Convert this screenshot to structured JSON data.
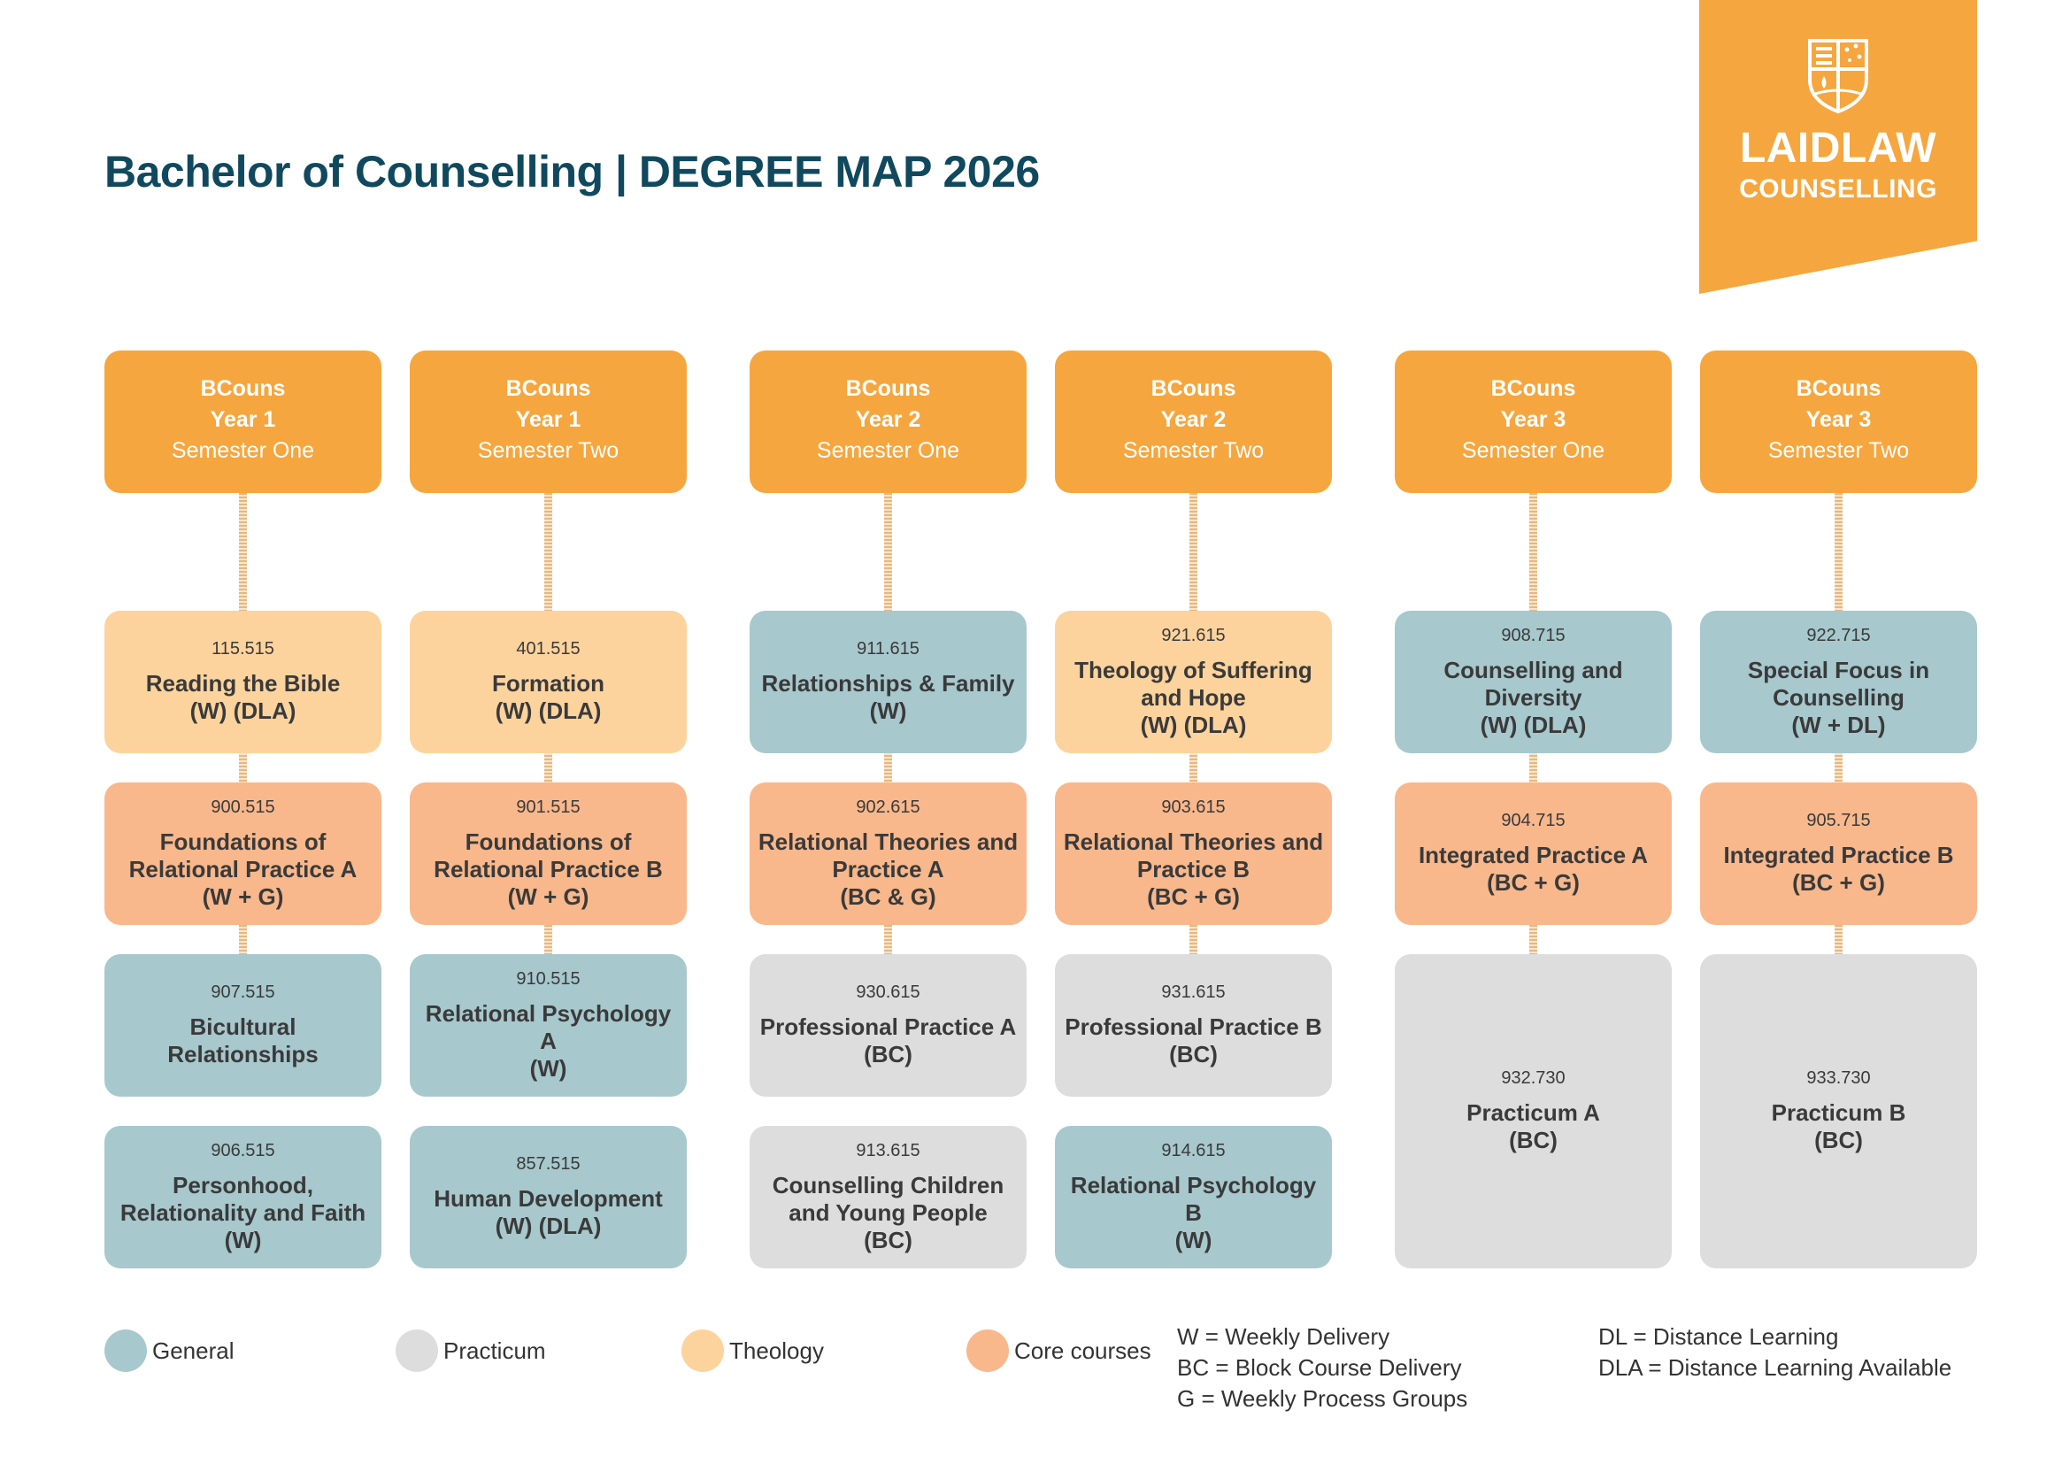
{
  "title": "Bachelor of Counselling | DEGREE MAP 2026",
  "logo": {
    "line1": "LAIDLAW",
    "line2": "COUNSELLING"
  },
  "colors": {
    "header": "#f6a63e",
    "theology": "#fdd39d",
    "core": "#f8b88c",
    "general": "#a7c8cd",
    "practicum": "#dddddd",
    "title": "#10495e"
  },
  "columns": [
    {
      "header": {
        "prog": "BCouns",
        "year": "Year 1",
        "sem": "Semester One"
      },
      "courses": [
        {
          "code": "115.515",
          "name": "Reading the Bible",
          "delivery": "(W) (DLA)",
          "category": "theology"
        },
        {
          "code": "900.515",
          "name": "Foundations of Relational Practice A",
          "delivery": "(W + G)",
          "category": "core"
        },
        {
          "code": "907.515",
          "name": "Bicultural Relationships",
          "delivery": "",
          "category": "general"
        },
        {
          "code": "906.515",
          "name": "Personhood, Relationality and Faith",
          "delivery": "(W)",
          "category": "general"
        }
      ]
    },
    {
      "header": {
        "prog": "BCouns",
        "year": "Year 1",
        "sem": "Semester Two"
      },
      "courses": [
        {
          "code": "401.515",
          "name": "Formation",
          "delivery": "(W) (DLA)",
          "category": "theology"
        },
        {
          "code": "901.515",
          "name": "Foundations of Relational Practice B",
          "delivery": "(W + G)",
          "category": "core"
        },
        {
          "code": "910.515",
          "name": "Relational Psychology A",
          "delivery": "(W)",
          "category": "general"
        },
        {
          "code": "857.515",
          "name": "Human Development",
          "delivery": "(W) (DLA)",
          "category": "general"
        }
      ]
    },
    {
      "header": {
        "prog": "BCouns",
        "year": "Year 2",
        "sem": "Semester One"
      },
      "courses": [
        {
          "code": "911.615",
          "name": "Relationships & Family",
          "delivery": "(W)",
          "category": "general"
        },
        {
          "code": "902.615",
          "name": "Relational Theories and Practice A",
          "delivery": "(BC & G)",
          "category": "core"
        },
        {
          "code": "930.615",
          "name": "Professional Practice A",
          "delivery": "(BC)",
          "category": "practicum"
        },
        {
          "code": "913.615",
          "name": "Counselling Children and Young People",
          "delivery": "(BC)",
          "category": "practicum"
        }
      ]
    },
    {
      "header": {
        "prog": "BCouns",
        "year": "Year 2",
        "sem": "Semester Two"
      },
      "courses": [
        {
          "code": "921.615",
          "name": "Theology of Suffering and Hope",
          "delivery": "(W) (DLA)",
          "category": "theology"
        },
        {
          "code": "903.615",
          "name": "Relational Theories and Practice B",
          "delivery": "(BC + G)",
          "category": "core"
        },
        {
          "code": "931.615",
          "name": "Professional Practice B",
          "delivery": "(BC)",
          "category": "practicum"
        },
        {
          "code": "914.615",
          "name": "Relational Psychology B",
          "delivery": "(W)",
          "category": "general"
        }
      ]
    },
    {
      "header": {
        "prog": "BCouns",
        "year": "Year 3",
        "sem": "Semester One"
      },
      "courses": [
        {
          "code": "908.715",
          "name": "Counselling and Diversity",
          "delivery": "(W) (DLA)",
          "category": "general"
        },
        {
          "code": "904.715",
          "name": "Integrated Practice A",
          "delivery": "(BC + G)",
          "category": "core"
        },
        {
          "code": "932.730",
          "name": "Practicum A",
          "delivery": "(BC)",
          "category": "practicum"
        }
      ]
    },
    {
      "header": {
        "prog": "BCouns",
        "year": "Year 3",
        "sem": "Semester Two"
      },
      "courses": [
        {
          "code": "922.715",
          "name": "Special Focus in Counselling",
          "delivery": "(W + DL)",
          "category": "general"
        },
        {
          "code": "905.715",
          "name": "Integrated Practice B",
          "delivery": "(BC + G)",
          "category": "core"
        },
        {
          "code": "933.730",
          "name": "Practicum B",
          "delivery": "(BC)",
          "category": "practicum"
        }
      ]
    }
  ],
  "legend": [
    {
      "label": "General",
      "category": "general"
    },
    {
      "label": "Practicum",
      "category": "practicum"
    },
    {
      "label": "Theology",
      "category": "theology"
    },
    {
      "label": "Core courses",
      "category": "core"
    }
  ],
  "key": {
    "left": [
      "W = Weekly Delivery",
      "BC = Block Course Delivery",
      "G = Weekly Process Groups"
    ],
    "right": [
      "DL = Distance Learning",
      "DLA = Distance Learning Available"
    ]
  }
}
